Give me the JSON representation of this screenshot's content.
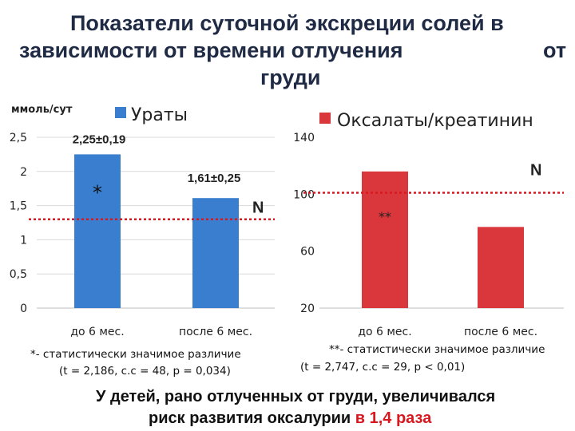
{
  "title": {
    "line1": "Показатели суточной экскреции солей в",
    "line2": "зависимости от времени отлучения",
    "line2_end": "от",
    "line3": "груди"
  },
  "chart_data": [
    {
      "type": "bar",
      "ylabel": "ммоль/сут",
      "legend": "Ураты",
      "legend_position": "top",
      "categories": [
        "до 6 мес.",
        "после 6 мес."
      ],
      "values": [
        2.25,
        1.61
      ],
      "data_labels": [
        "2,25±0,19",
        "1,61±0,25"
      ],
      "ylim": [
        0,
        2.5
      ],
      "yticks": [
        0,
        0.5,
        1,
        1.5,
        2,
        2.5
      ],
      "ytick_labels": [
        "0",
        "0,5",
        "1",
        "1,5",
        "2",
        "2,5"
      ],
      "norm_value": 1.3,
      "norm_label": "N",
      "bar_annotation": "*",
      "bar_color": "#3a7fcf",
      "norm_color": "#d8181e",
      "grid": true
    },
    {
      "type": "bar",
      "legend": "Оксалаты/креатинин",
      "legend_position": "top",
      "categories": [
        "до 6 мес.",
        "после 6 мес."
      ],
      "values": [
        116,
        77
      ],
      "ylim": [
        20,
        140
      ],
      "yticks": [
        20,
        60,
        100,
        140
      ],
      "ytick_labels": [
        "20",
        "60",
        "100",
        "140"
      ],
      "norm_value": 101,
      "norm_label": "N",
      "bar_annotation": "**",
      "bar_color": "#d9373b",
      "norm_color": "#d8181e",
      "grid": false
    }
  ],
  "notes": {
    "left_line1": "*- статистически значимое различие",
    "left_line2": "(t = 2,186, с.с = 48, p = 0,034)",
    "right_line1": "**- статистически значимое различие",
    "right_line2": "(t = 2,747, с.с = 29, p < 0,01)"
  },
  "conclusion": {
    "line1": "У детей, рано отлученных от груди, увеличивался",
    "line2_prefix": "риск развития оксалурии ",
    "line2_highlight": "в 1,4 раза"
  }
}
